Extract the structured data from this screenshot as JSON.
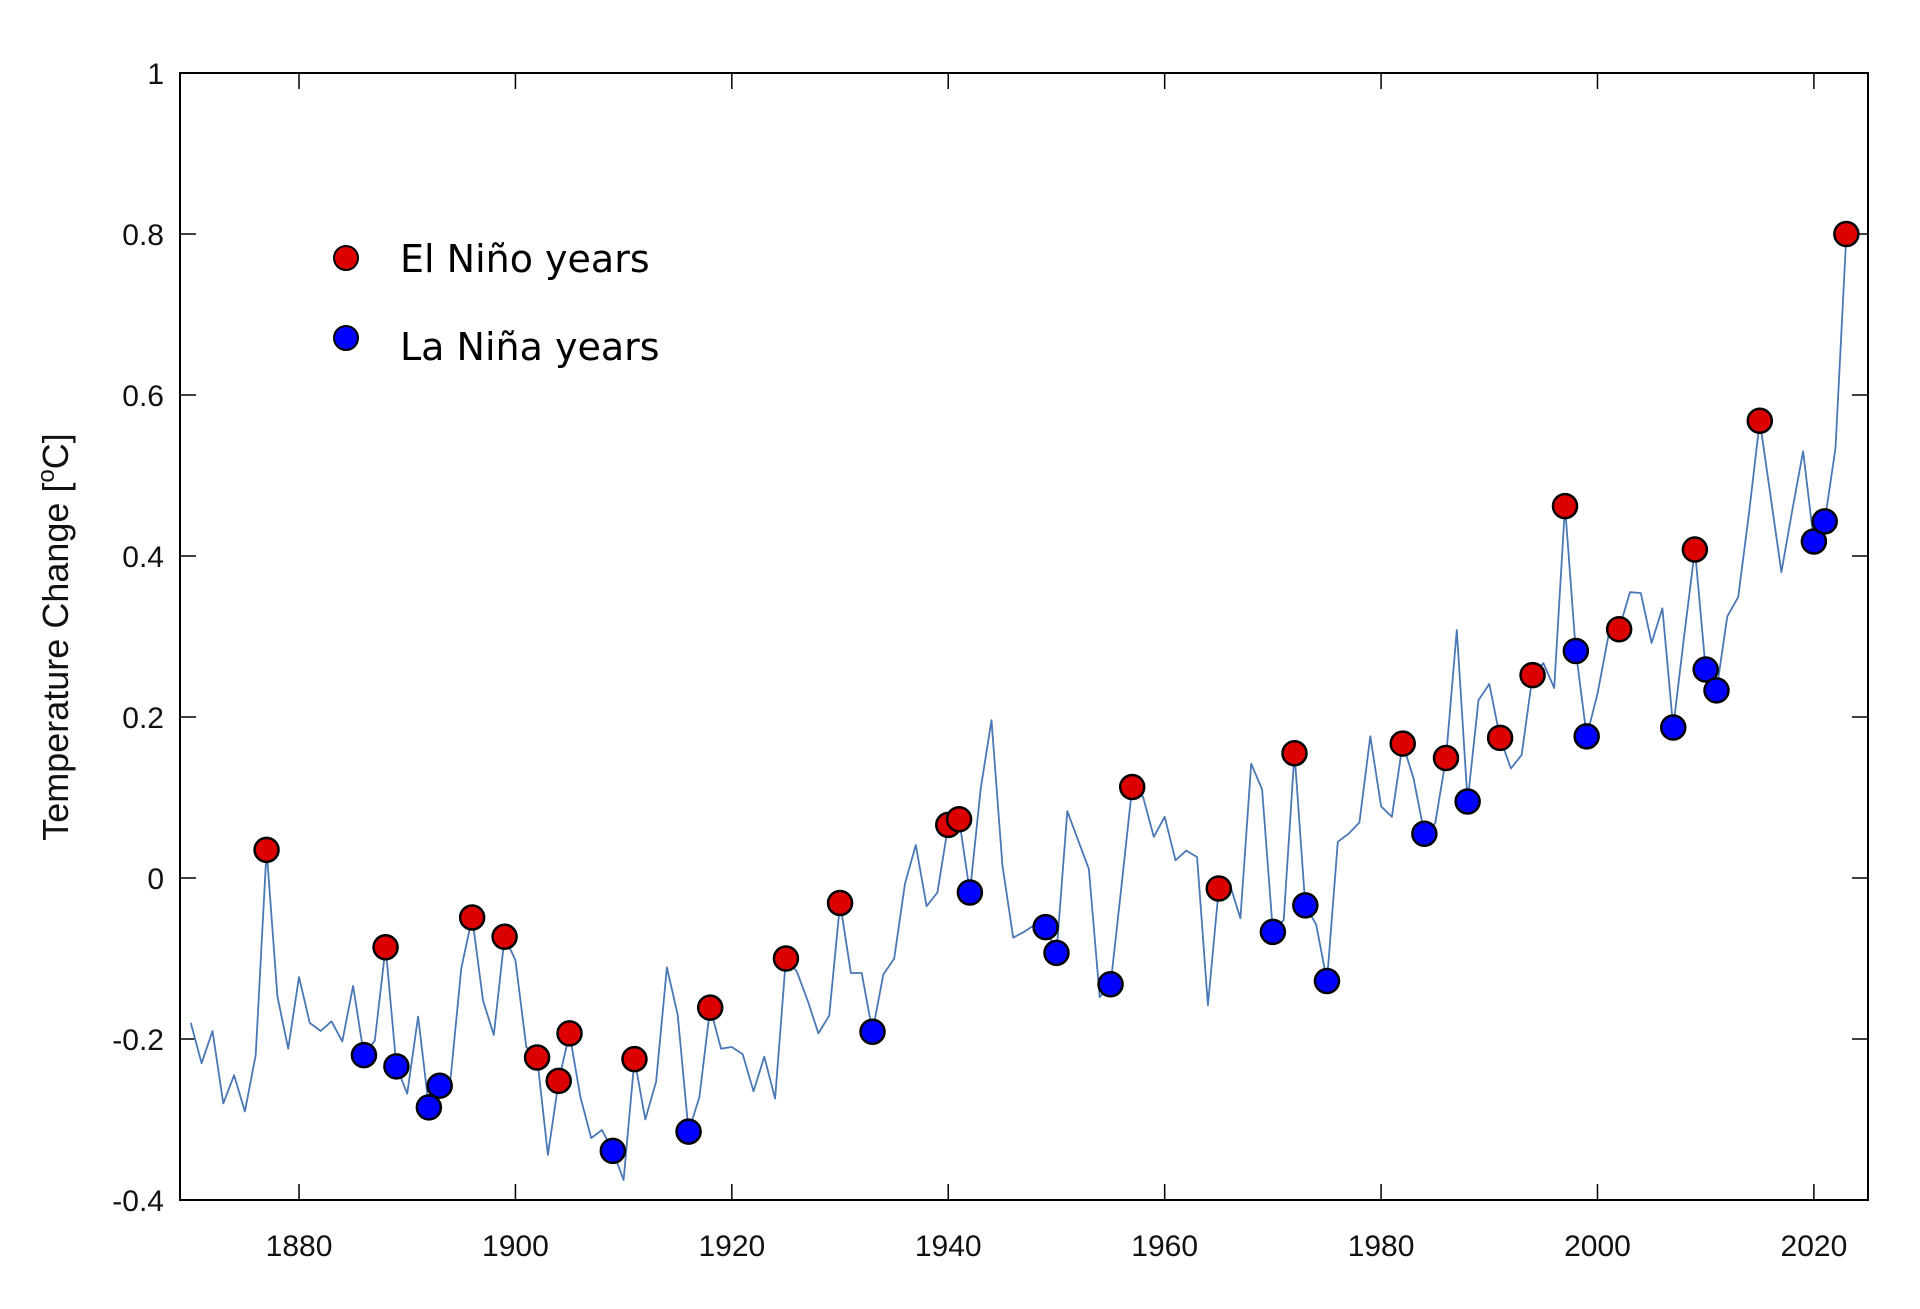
{
  "chart_data": {
    "type": "line",
    "title": "",
    "xlabel": "",
    "ylabel": "Temperature Change [°C]",
    "ylabel_parts": {
      "before": "Temperature Change [",
      "superscript": "o",
      "after": "C]"
    },
    "xlim": [
      1869,
      2025
    ],
    "ylim": [
      -0.4,
      1.0
    ],
    "xticks": [
      1880,
      1900,
      1920,
      1940,
      1960,
      1980,
      2000,
      2020
    ],
    "xtick_labels": [
      "1880",
      "1900",
      "1920",
      "1940",
      "1960",
      "1980",
      "2000",
      "2020"
    ],
    "yticks": [
      -0.4,
      -0.2,
      0,
      0.2,
      0.4,
      0.6,
      0.8,
      1
    ],
    "ytick_labels": [
      "-0.4",
      "-0.2",
      "0",
      "0.2",
      "0.4",
      "0.6",
      "0.8",
      "1"
    ],
    "grid": false,
    "legend_position": "top-left",
    "colors": {
      "line": "#4a78b5",
      "el_nino": "#dd0000",
      "la_nina": "#0000ff",
      "marker_edge": "#000000",
      "axis": "#000000"
    },
    "x": [
      1870,
      1871,
      1872,
      1873,
      1874,
      1875,
      1876,
      1877,
      1878,
      1879,
      1880,
      1881,
      1882,
      1883,
      1884,
      1885,
      1886,
      1887,
      1888,
      1889,
      1890,
      1891,
      1892,
      1893,
      1894,
      1895,
      1896,
      1897,
      1898,
      1899,
      1900,
      1901,
      1902,
      1903,
      1904,
      1905,
      1906,
      1907,
      1908,
      1909,
      1910,
      1911,
      1912,
      1913,
      1914,
      1915,
      1916,
      1917,
      1918,
      1919,
      1920,
      1921,
      1922,
      1923,
      1924,
      1925,
      1926,
      1927,
      1928,
      1929,
      1930,
      1931,
      1932,
      1933,
      1934,
      1935,
      1936,
      1937,
      1938,
      1939,
      1940,
      1941,
      1942,
      1943,
      1944,
      1945,
      1946,
      1947,
      1948,
      1949,
      1950,
      1951,
      1952,
      1953,
      1954,
      1955,
      1956,
      1957,
      1958,
      1959,
      1960,
      1961,
      1962,
      1963,
      1964,
      1965,
      1966,
      1967,
      1968,
      1969,
      1970,
      1971,
      1972,
      1973,
      1974,
      1975,
      1976,
      1977,
      1978,
      1979,
      1980,
      1981,
      1982,
      1983,
      1984,
      1985,
      1986,
      1987,
      1988,
      1989,
      1990,
      1991,
      1992,
      1993,
      1994,
      1995,
      1996,
      1997,
      1998,
      1999,
      2000,
      2001,
      2002,
      2003,
      2004,
      2005,
      2006,
      2007,
      2008,
      2009,
      2010,
      2011,
      2012,
      2013,
      2014,
      2015,
      2016,
      2017,
      2018,
      2019,
      2020,
      2021,
      2022,
      2023
    ],
    "series": [
      {
        "name": "Temperature Change",
        "values": [
          -0.18,
          -0.23,
          -0.19,
          -0.28,
          -0.245,
          -0.29,
          -0.22,
          0.035,
          -0.147,
          -0.212,
          -0.123,
          -0.18,
          -0.19,
          -0.178,
          -0.203,
          -0.134,
          -0.22,
          -0.202,
          -0.086,
          -0.234,
          -0.268,
          -0.172,
          -0.285,
          -0.258,
          -0.25,
          -0.112,
          -0.049,
          -0.152,
          -0.195,
          -0.073,
          -0.102,
          -0.21,
          -0.223,
          -0.344,
          -0.252,
          -0.193,
          -0.272,
          -0.323,
          -0.313,
          -0.339,
          -0.375,
          -0.225,
          -0.3,
          -0.253,
          -0.111,
          -0.17,
          -0.315,
          -0.272,
          -0.161,
          -0.212,
          -0.21,
          -0.219,
          -0.265,
          -0.222,
          -0.274,
          -0.1,
          -0.116,
          -0.152,
          -0.193,
          -0.171,
          -0.031,
          -0.118,
          -0.118,
          -0.191,
          -0.12,
          -0.1,
          -0.007,
          0.041,
          -0.035,
          -0.018,
          0.066,
          0.073,
          -0.018,
          0.111,
          0.196,
          0.016,
          -0.074,
          -0.067,
          -0.058,
          -0.061,
          -0.093,
          0.083,
          0.047,
          0.011,
          -0.148,
          -0.132,
          -0.011,
          0.113,
          0.101,
          0.051,
          0.076,
          0.022,
          0.034,
          0.026,
          -0.158,
          -0.013,
          -0.007,
          -0.05,
          0.142,
          0.11,
          -0.067,
          -0.052,
          0.155,
          -0.034,
          -0.058,
          -0.128,
          0.045,
          0.055,
          0.069,
          0.176,
          0.089,
          0.076,
          0.167,
          0.124,
          0.055,
          0.068,
          0.149,
          0.308,
          0.095,
          0.221,
          0.241,
          0.174,
          0.136,
          0.153,
          0.252,
          0.267,
          0.236,
          0.462,
          0.282,
          0.176,
          0.229,
          0.3,
          0.309,
          0.355,
          0.354,
          0.292,
          0.335,
          0.187,
          0.3,
          0.408,
          0.259,
          0.233,
          0.325,
          0.349,
          0.453,
          0.568,
          0.474,
          0.38,
          0.457,
          0.53,
          0.418,
          0.443,
          0.534,
          0.8
        ]
      }
    ],
    "markers": {
      "el_nino": {
        "label": "El Niño years",
        "years": [
          1877,
          1888,
          1896,
          1899,
          1902,
          1904,
          1905,
          1911,
          1918,
          1925,
          1930,
          1940,
          1941,
          1957,
          1965,
          1972,
          1982,
          1986,
          1991,
          1994,
          1997,
          2002,
          2009,
          2015,
          2023
        ]
      },
      "la_nina": {
        "label": "La Niña years",
        "years": [
          1886,
          1889,
          1892,
          1893,
          1909,
          1916,
          1933,
          1942,
          1949,
          1950,
          1955,
          1970,
          1973,
          1975,
          1984,
          1988,
          1998,
          1999,
          2007,
          2010,
          2011,
          2020,
          2021
        ]
      }
    },
    "legend": [
      {
        "label": "El Niño years",
        "color": "#dd0000"
      },
      {
        "label": "La Niña years",
        "color": "#0000ff"
      }
    ]
  }
}
